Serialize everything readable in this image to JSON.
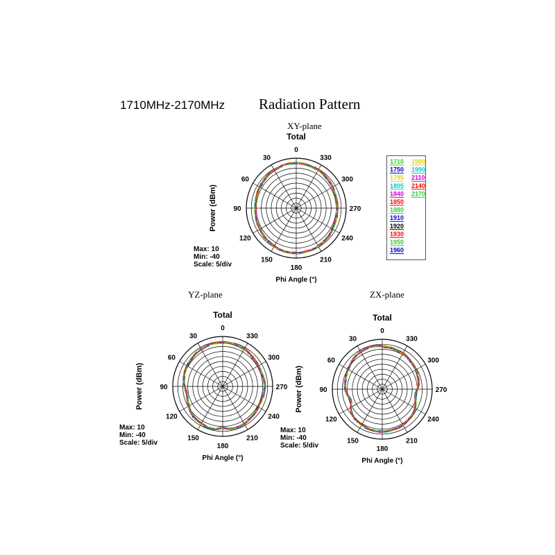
{
  "header": {
    "range_label": "1710MHz-2170MHz",
    "title": "Radiation Pattern"
  },
  "colors": {
    "grid": "#000000",
    "series": [
      "#33cc33",
      "#0000cc",
      "#e6d600",
      "#00cccc",
      "#cc00cc",
      "#ff0000",
      "#33cc33",
      "#0000cc",
      "#000000",
      "#ff0000",
      "#33cc33",
      "#0000cc",
      "#e6d600",
      "#00cccc",
      "#cc00cc",
      "#ff0000",
      "#33cc33"
    ]
  },
  "chart_data": [
    {
      "type": "polar",
      "plane_label": "XY-plane",
      "title": "Total",
      "radial_label": "Power  (dBm)",
      "angle_label": "Phi Angle  (°)",
      "angle_ticks": [
        "0",
        "330",
        "300",
        "270",
        "240",
        "210",
        "180",
        "150",
        "120",
        "90",
        "60",
        "30"
      ],
      "max_label": "Max: 10",
      "min_label": "Min: -40",
      "scale_label": "Scale: 5/div",
      "rlim": [
        -40,
        10
      ],
      "shape": "xy",
      "legend": [
        "1710",
        "1750",
        "1795",
        "1805",
        "1840",
        "1850",
        "1880",
        "1910",
        "1920",
        "1930",
        "1950",
        "1960",
        "1980",
        "1990",
        "2110",
        "2140",
        "2170"
      ]
    },
    {
      "type": "polar",
      "plane_label": "YZ-plane",
      "title": "Total",
      "radial_label": "Power  (dBm)",
      "angle_label": "Phi Angle  (°)",
      "angle_ticks": [
        "0",
        "330",
        "300",
        "270",
        "240",
        "210",
        "180",
        "150",
        "120",
        "90",
        "60",
        "30"
      ],
      "max_label": "Max: 10",
      "min_label": "Min: -40",
      "scale_label": "Scale: 5/div",
      "rlim": [
        -40,
        10
      ],
      "shape": "yz"
    },
    {
      "type": "polar",
      "plane_label": "ZX-plane",
      "title": "Total",
      "radial_label": "Power  (dBm)",
      "angle_label": "Phi Angle  (°)",
      "angle_ticks": [
        "0",
        "330",
        "300",
        "270",
        "240",
        "210",
        "180",
        "150",
        "120",
        "90",
        "60",
        "30"
      ],
      "max_label": "Max: 10",
      "min_label": "Min: -40",
      "scale_label": "Scale: 5/div",
      "rlim": [
        -40,
        10
      ],
      "shape": "zx"
    }
  ]
}
